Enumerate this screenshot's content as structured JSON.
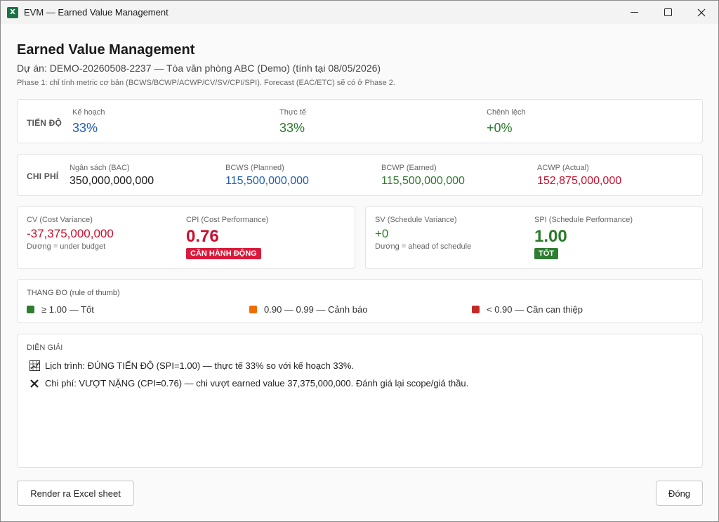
{
  "window": {
    "title": "EVM — Earned Value Management",
    "app_icon_letter": "X"
  },
  "header": {
    "title": "Earned Value Management",
    "project_line": "Dự án: DEMO-20260508-2237 — Tòa văn phòng ABC (Demo) (tính tại 08/05/2026)",
    "phase_note": "Phase 1: chỉ tính metric cơ bản (BCWS/BCWP/ACWP/CV/SV/CPI/SPI). Forecast (EAC/ETC) sẽ có ở Phase 2."
  },
  "progress": {
    "section": "TIẾN ĐỘ",
    "planned_label": "Kế hoạch",
    "planned_value": "33%",
    "actual_label": "Thực tế",
    "actual_value": "33%",
    "diff_label": "Chênh lệch",
    "diff_value": "+0%"
  },
  "cost": {
    "section": "CHI PHÍ",
    "bac_label": "Ngân sách (BAC)",
    "bac_value": "350,000,000,000",
    "bcws_label": "BCWS (Planned)",
    "bcws_value": "115,500,000,000",
    "bcwp_label": "BCWP (Earned)",
    "bcwp_value": "115,500,000,000",
    "acwp_label": "ACWP (Actual)",
    "acwp_value": "152,875,000,000"
  },
  "cost_metrics": {
    "cv_label": "CV (Cost Variance)",
    "cv_value": "-37,375,000,000",
    "cv_note": "Dương = under budget",
    "cpi_label": "CPI (Cost Performance)",
    "cpi_value": "0.76",
    "cpi_badge": "CẦN HÀNH ĐỘNG"
  },
  "schedule_metrics": {
    "sv_label": "SV (Schedule Variance)",
    "sv_value": "+0",
    "sv_note": "Dương = ahead of schedule",
    "spi_label": "SPI (Schedule Performance)",
    "spi_value": "1.00",
    "spi_badge": "TỐT"
  },
  "scale": {
    "title": "THANG ĐO (rule of thumb)",
    "items": [
      {
        "label": "≥ 1.00 — Tốt",
        "color": "#2e7d32"
      },
      {
        "label": "0.90 — 0.99 — Cảnh báo",
        "color": "#ef6c00"
      },
      {
        "label": "< 0.90 — Cần can thiệp",
        "color": "#c62828"
      }
    ]
  },
  "interpretation": {
    "title": "DIỄN GIẢI",
    "lines": [
      {
        "icon": "chart-icon",
        "text": "Lịch trình: ĐÚNG TIẾN ĐỘ (SPI=1.00) — thực tế 33% so với kế hoạch 33%."
      },
      {
        "icon": "cross-icon",
        "text": "Chi phí: VƯỢT NẶNG (CPI=0.76) — chi vượt earned value 37,375,000,000. Đánh giá lại scope/giá thầu."
      }
    ]
  },
  "footer": {
    "render_button": "Render ra Excel sheet",
    "close_button": "Đóng"
  },
  "colors": {
    "blue": "#1f5fb5",
    "green": "#2a7a2a",
    "red": "#c8102e",
    "badge_red": "#d81b3c",
    "badge_green": "#2e7d32"
  }
}
